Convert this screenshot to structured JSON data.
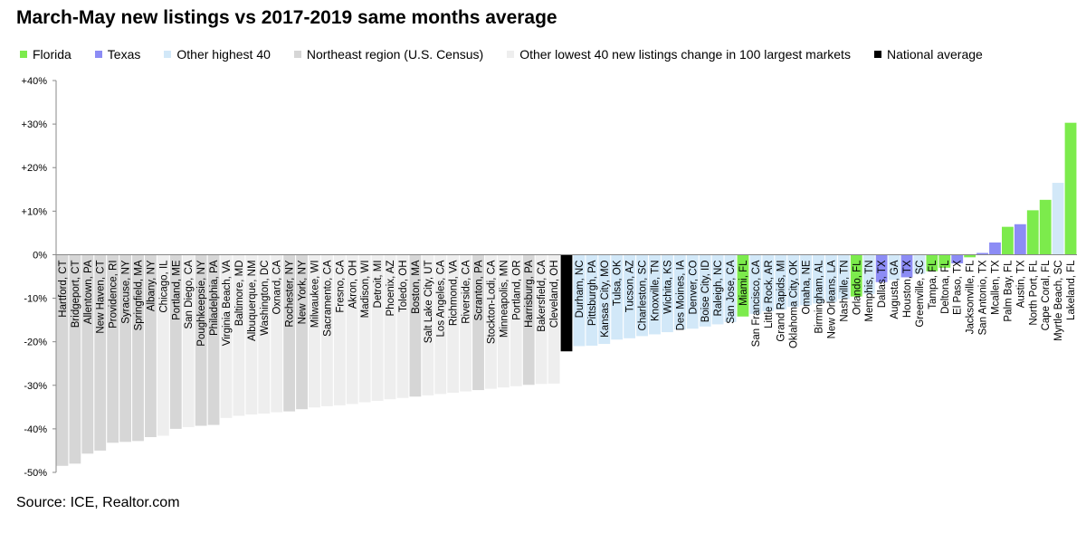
{
  "chart_data": {
    "type": "bar",
    "title": "March-May new listings vs 2017-2019 same months average",
    "source": "Source: ICE, Realtor.com",
    "ylim": [
      -50,
      40
    ],
    "yticks": [
      {
        "value": 40,
        "label": "+40%"
      },
      {
        "value": 30,
        "label": "+30%"
      },
      {
        "value": 20,
        "label": "+20%"
      },
      {
        "value": 10,
        "label": "+10%"
      },
      {
        "value": 0,
        "label": "0%"
      },
      {
        "value": -10,
        "label": "-10%"
      },
      {
        "value": -20,
        "label": "-20%"
      },
      {
        "value": -30,
        "label": "-30%"
      },
      {
        "value": -40,
        "label": "-40%"
      },
      {
        "value": -50,
        "label": "-50%"
      }
    ],
    "grid": false,
    "legend_position": "top",
    "groups": [
      {
        "key": "florida",
        "label": "Florida",
        "color": "#7CEB4C"
      },
      {
        "key": "texas",
        "label": "Texas",
        "color": "#8C8CF5"
      },
      {
        "key": "highest",
        "label": "Other highest 40",
        "color": "#D2E8F8"
      },
      {
        "key": "northeast",
        "label": "Northeast region (U.S. Census)",
        "color": "#D6D6D6"
      },
      {
        "key": "lowest",
        "label": "Other lowest 40 new listings change in 100 largest markets",
        "color": "#EEEEEE"
      },
      {
        "key": "national",
        "label": "National average",
        "color": "#000000"
      }
    ],
    "categories": [
      "Hartford, CT",
      "Bridgeport, CT",
      "Allentown, PA",
      "New Haven, CT",
      "Providence, RI",
      "Syracuse, NY",
      "Springfield, MA",
      "Albany, NY",
      "Chicago, IL",
      "Portland, ME",
      "San Diego, CA",
      "Poughkeepsie, NY",
      "Philadelphia, PA",
      "Virginia Beach, VA",
      "Baltimore, MD",
      "Albuquerque, NM",
      "Washington, DC",
      "Oxnard, CA",
      "Rochester, NY",
      "New York, NY",
      "Milwaukee, WI",
      "Sacramento, CA",
      "Fresno, CA",
      "Akron, OH",
      "Madison, WI",
      "Detroit, MI",
      "Phoenix, AZ",
      "Toledo, OH",
      "Boston, MA",
      "Salt Lake City, UT",
      "Los Angeles, CA",
      "Richmond, VA",
      "Riverside, CA",
      "Scranton, PA",
      "Stockton-Lodi, CA",
      "Minneapolis, MN",
      "Portland, OR",
      "Harrisburg, PA",
      "Bakersfield, CA",
      "Cleveland, OH",
      "",
      "Durham, NC",
      "Pittsburgh, PA",
      "Kansas City, MO",
      "Tulsa, OK",
      "Tucson, AZ",
      "Charleston, SC",
      "Knoxville, TN",
      "Wichita, KS",
      "Des Moines, IA",
      "Denver, CO",
      "Boise City, ID",
      "Raleigh, NC",
      "San Jose, CA",
      "Miami, FL",
      "San Francisco, CA",
      "Little Rock, AR",
      "Grand Rapids, MI",
      "Oklahoma City, OK",
      "Omaha, NE",
      "Birmingham, AL",
      "New Orleans, LA",
      "Nashville, TN",
      "Orlando, FL",
      "Memphis, TN",
      "Dallas, TX",
      "Augusta, GA",
      "Houston, TX",
      "Greenville, SC",
      "Tampa, FL",
      "Deltona, FL",
      "El Paso, TX",
      "Jacksonville, FL",
      "San Antonio, TX",
      "Mcallen, TX",
      "Palm Bay, FL",
      "Austin, TX",
      "North Port, FL",
      "Cape Coral, FL",
      "Myrtle Beach, SC",
      "Lakeland, FL"
    ],
    "groups_by_bar": [
      "northeast",
      "northeast",
      "northeast",
      "northeast",
      "northeast",
      "northeast",
      "northeast",
      "northeast",
      "lowest",
      "northeast",
      "lowest",
      "northeast",
      "northeast",
      "lowest",
      "lowest",
      "lowest",
      "lowest",
      "lowest",
      "northeast",
      "northeast",
      "lowest",
      "lowest",
      "lowest",
      "lowest",
      "lowest",
      "lowest",
      "lowest",
      "lowest",
      "northeast",
      "lowest",
      "lowest",
      "lowest",
      "lowest",
      "northeast",
      "lowest",
      "lowest",
      "lowest",
      "northeast",
      "lowest",
      "lowest",
      "national",
      "highest",
      "highest",
      "highest",
      "highest",
      "highest",
      "highest",
      "highest",
      "highest",
      "highest",
      "highest",
      "highest",
      "highest",
      "highest",
      "florida",
      "highest",
      "highest",
      "highest",
      "highest",
      "highest",
      "highest",
      "highest",
      "highest",
      "florida",
      "highest",
      "texas",
      "highest",
      "texas",
      "highest",
      "florida",
      "florida",
      "texas",
      "florida",
      "texas",
      "texas",
      "florida",
      "texas",
      "florida",
      "florida",
      "highest",
      "florida"
    ],
    "values": [
      -48.5,
      -48.0,
      -45.7,
      -45.0,
      -43.2,
      -43.0,
      -42.8,
      -41.9,
      -41.6,
      -40.0,
      -39.6,
      -39.3,
      -39.1,
      -37.5,
      -37.0,
      -36.7,
      -36.5,
      -36.2,
      -36.0,
      -35.5,
      -35.1,
      -34.8,
      -34.6,
      -34.3,
      -33.9,
      -33.6,
      -33.2,
      -32.9,
      -32.6,
      -32.3,
      -32.0,
      -31.7,
      -31.4,
      -31.1,
      -30.8,
      -30.5,
      -30.2,
      -29.9,
      -29.7,
      -29.6,
      -22.2,
      -21.0,
      -20.9,
      -20.5,
      -19.5,
      -19.2,
      -18.7,
      -18.3,
      -17.8,
      -17.2,
      -17.0,
      -16.5,
      -16.0,
      -15.5,
      -14.2,
      -13.6,
      -13.0,
      -12.6,
      -12.0,
      -11.6,
      -11.2,
      -10.8,
      -10.2,
      -9.6,
      -9.0,
      -6.3,
      -5.8,
      -5.2,
      -4.4,
      -3.8,
      -3.0,
      -2.0,
      -0.6,
      0.4,
      2.8,
      6.4,
      7.0,
      10.2,
      12.6,
      16.5,
      30.3
    ]
  }
}
